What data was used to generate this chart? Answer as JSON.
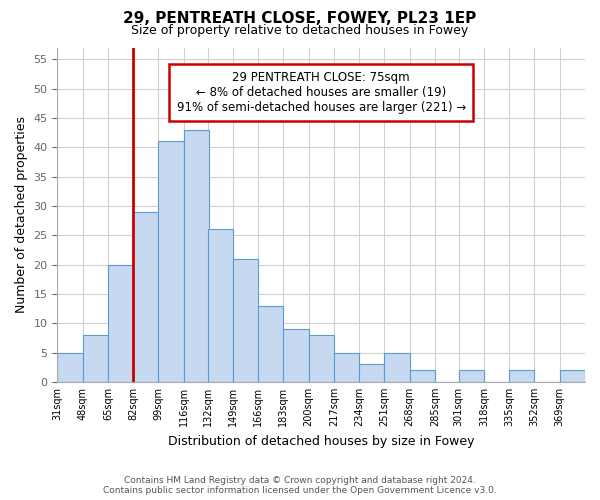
{
  "title": "29, PENTREATH CLOSE, FOWEY, PL23 1EP",
  "subtitle": "Size of property relative to detached houses in Fowey",
  "xlabel": "Distribution of detached houses by size in Fowey",
  "ylabel": "Number of detached properties",
  "bin_labels": [
    "31sqm",
    "48sqm",
    "65sqm",
    "82sqm",
    "99sqm",
    "116sqm",
    "132sqm",
    "149sqm",
    "166sqm",
    "183sqm",
    "200sqm",
    "217sqm",
    "234sqm",
    "251sqm",
    "268sqm",
    "285sqm",
    "301sqm",
    "318sqm",
    "335sqm",
    "352sqm",
    "369sqm"
  ],
  "bin_edges": [
    31,
    48,
    65,
    82,
    99,
    116,
    132,
    149,
    166,
    183,
    200,
    217,
    234,
    251,
    268,
    285,
    301,
    318,
    335,
    352,
    369
  ],
  "bin_width": 17,
  "bar_heights": [
    5,
    8,
    20,
    29,
    41,
    43,
    26,
    21,
    13,
    9,
    8,
    5,
    3,
    5,
    2,
    0,
    2,
    0,
    2,
    0,
    2
  ],
  "bar_color": "#c6d9f0",
  "bar_edge_color": "#5b9bd5",
  "vline_x": 82,
  "vline_color": "#cc0000",
  "annotation_line1": "29 PENTREATH CLOSE: 75sqm",
  "annotation_line2": "← 8% of detached houses are smaller (19)",
  "annotation_line3": "91% of semi-detached houses are larger (221) →",
  "annotation_box_edge": "#cc0000",
  "annotation_box_face": "#ffffff",
  "ylim": [
    0,
    57
  ],
  "yticks": [
    0,
    5,
    10,
    15,
    20,
    25,
    30,
    35,
    40,
    45,
    50,
    55
  ],
  "footer_line1": "Contains HM Land Registry data © Crown copyright and database right 2024.",
  "footer_line2": "Contains public sector information licensed under the Open Government Licence v3.0.",
  "bg_color": "#ffffff",
  "grid_color": "#d0d0d0"
}
